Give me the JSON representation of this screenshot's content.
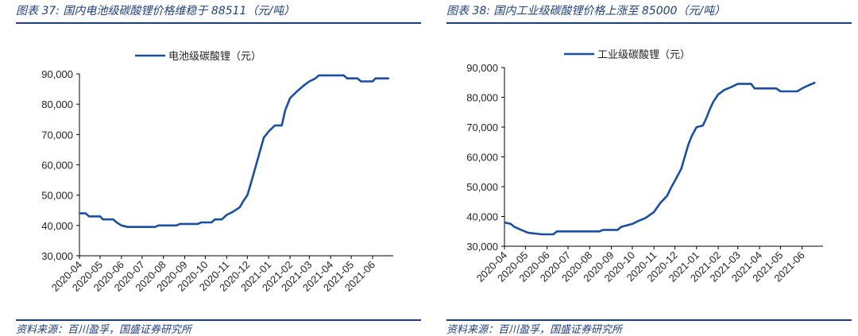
{
  "figures": [
    {
      "title": "图表 37:  国内电池级碳酸锂价格维稳于 88511（元/吨）",
      "source": "资料来源：百川盈孚，国盛证券研究所"
    },
    {
      "title": "图表 38:  国内工业级碳酸锂价格上涨至 85000（元/吨）",
      "source": "资料来源：百川盈孚，国盛证券研究所"
    }
  ],
  "chart_data": [
    {
      "type": "line",
      "title": "",
      "xlabel": "",
      "ylabel": "",
      "ylim": [
        30000,
        90000
      ],
      "yticks": [
        30000,
        40000,
        50000,
        60000,
        70000,
        80000,
        90000
      ],
      "ytick_labels": [
        "30,000",
        "40,000",
        "50,000",
        "60,000",
        "70,000",
        "80,000",
        "90,000"
      ],
      "xtick_labels": [
        "2020-04",
        "2020-05",
        "2020-06",
        "2020-07",
        "2020-08",
        "2020-09",
        "2020-10",
        "2020-11",
        "2020-12",
        "2021-01",
        "2021-02",
        "2021-03",
        "2021-04",
        "2021-05",
        "2021-06"
      ],
      "legend_position": "top-center",
      "series": [
        {
          "name": "电池级碳酸锂（元）",
          "color": "#1a4fa0",
          "points": [
            [
              "2020-04-01",
              44000
            ],
            [
              "2020-04-10",
              44000
            ],
            [
              "2020-04-15",
              43000
            ],
            [
              "2020-05-01",
              43000
            ],
            [
              "2020-05-05",
              42000
            ],
            [
              "2020-05-20",
              42000
            ],
            [
              "2020-05-25",
              41000
            ],
            [
              "2020-06-01",
              40000
            ],
            [
              "2020-06-10",
              39500
            ],
            [
              "2020-07-20",
              39500
            ],
            [
              "2020-07-25",
              40000
            ],
            [
              "2020-08-20",
              40000
            ],
            [
              "2020-08-25",
              40500
            ],
            [
              "2020-09-20",
              40500
            ],
            [
              "2020-09-25",
              41000
            ],
            [
              "2020-10-10",
              41000
            ],
            [
              "2020-10-15",
              42000
            ],
            [
              "2020-10-25",
              42000
            ],
            [
              "2020-11-01",
              43500
            ],
            [
              "2020-11-10",
              44500
            ],
            [
              "2020-11-20",
              46000
            ],
            [
              "2020-11-25",
              48000
            ],
            [
              "2020-12-01",
              50000
            ],
            [
              "2020-12-05",
              53000
            ],
            [
              "2020-12-10",
              57000
            ],
            [
              "2020-12-15",
              61000
            ],
            [
              "2020-12-20",
              65000
            ],
            [
              "2020-12-25",
              69000
            ],
            [
              "2021-01-01",
              71000
            ],
            [
              "2021-01-10",
              73000
            ],
            [
              "2021-01-20",
              73000
            ],
            [
              "2021-01-25",
              78000
            ],
            [
              "2021-02-01",
              82000
            ],
            [
              "2021-02-10",
              84000
            ],
            [
              "2021-02-20",
              86000
            ],
            [
              "2021-03-01",
              87500
            ],
            [
              "2021-03-10",
              88500
            ],
            [
              "2021-03-15",
              89500
            ],
            [
              "2021-04-20",
              89500
            ],
            [
              "2021-04-25",
              88500
            ],
            [
              "2021-05-10",
              88500
            ],
            [
              "2021-05-15",
              87500
            ],
            [
              "2021-06-01",
              87500
            ],
            [
              "2021-06-05",
              88511
            ],
            [
              "2021-06-25",
              88511
            ]
          ]
        }
      ]
    },
    {
      "type": "line",
      "title": "",
      "xlabel": "",
      "ylabel": "",
      "ylim": [
        30000,
        90000
      ],
      "yticks": [
        30000,
        40000,
        50000,
        60000,
        70000,
        80000,
        90000
      ],
      "ytick_labels": [
        "30,000",
        "40,000",
        "50,000",
        "60,000",
        "70,000",
        "80,000",
        "90,000"
      ],
      "xtick_labels": [
        "2020-04",
        "2020-05",
        "2020-06",
        "2020-07",
        "2020-08",
        "2020-09",
        "2020-10",
        "2020-11",
        "2020-12",
        "2021-01",
        "2021-02",
        "2021-03",
        "2021-04",
        "2021-05",
        "2021-06"
      ],
      "legend_position": "top-center",
      "series": [
        {
          "name": "工业级碳酸锂（元）",
          "color": "#1a4fa0",
          "points": [
            [
              "2020-04-01",
              38000
            ],
            [
              "2020-04-10",
              37500
            ],
            [
              "2020-04-15",
              36500
            ],
            [
              "2020-04-25",
              35500
            ],
            [
              "2020-05-05",
              34500
            ],
            [
              "2020-05-25",
              34000
            ],
            [
              "2020-06-10",
              34000
            ],
            [
              "2020-06-15",
              35000
            ],
            [
              "2020-08-15",
              35000
            ],
            [
              "2020-08-20",
              35500
            ],
            [
              "2020-09-10",
              35500
            ],
            [
              "2020-09-15",
              36500
            ],
            [
              "2020-10-01",
              37500
            ],
            [
              "2020-10-10",
              38500
            ],
            [
              "2020-10-20",
              39500
            ],
            [
              "2020-11-01",
              41500
            ],
            [
              "2020-11-10",
              44500
            ],
            [
              "2020-11-20",
              47000
            ],
            [
              "2020-11-25",
              49500
            ],
            [
              "2020-12-01",
              52000
            ],
            [
              "2020-12-10",
              56000
            ],
            [
              "2020-12-15",
              60000
            ],
            [
              "2020-12-20",
              64000
            ],
            [
              "2020-12-25",
              67000
            ],
            [
              "2021-01-01",
              70000
            ],
            [
              "2021-01-10",
              70500
            ],
            [
              "2021-01-15",
              73000
            ],
            [
              "2021-01-20",
              76000
            ],
            [
              "2021-01-25",
              78500
            ],
            [
              "2021-02-01",
              81000
            ],
            [
              "2021-02-10",
              82500
            ],
            [
              "2021-02-20",
              83500
            ],
            [
              "2021-03-01",
              84500
            ],
            [
              "2021-03-20",
              84500
            ],
            [
              "2021-03-25",
              83000
            ],
            [
              "2021-04-25",
              83000
            ],
            [
              "2021-05-01",
              82000
            ],
            [
              "2021-05-25",
              82000
            ],
            [
              "2021-06-01",
              83000
            ],
            [
              "2021-06-10",
              84000
            ],
            [
              "2021-06-20",
              85000
            ]
          ]
        }
      ]
    }
  ]
}
